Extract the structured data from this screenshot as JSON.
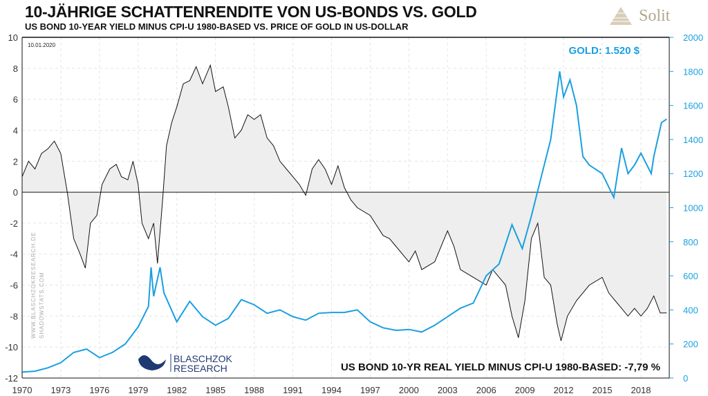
{
  "header": {
    "title": "10-JÄHRIGE SCHATTENRENDITE VON US-BONDS VS. GOLD",
    "subtitle": "US BOND 10-YEAR YIELD MINUS CPI-U 1980-BASED VS. PRICE OF GOLD IN US-DOLLAR",
    "brand": "Solit"
  },
  "colors": {
    "gold": "#1a9fe0",
    "yield": "#111111",
    "fill": "#eeeeee"
  },
  "chart_data": {
    "type": "line",
    "title": "10-JÄHRIGE SCHATTENRENDITE VON US-BONDS VS. GOLD",
    "date": "10.01.2020",
    "watermark": [
      "WWW.BLASCHZOKRESEARCH.DE",
      "SHADOWSTATS.COM"
    ],
    "publisher": [
      "BLASCHZOK",
      "RESEARCH"
    ],
    "gold_label": "GOLD: 1.520 $",
    "yield_label": "US BOND 10-YR REAL YIELD MINUS CPI-U 1980-BASED: -7,79 %",
    "xlim": [
      1970,
      2020.2
    ],
    "x_ticks": [
      "1970",
      "1973",
      "1976",
      "1979",
      "1982",
      "1985",
      "1988",
      "1991",
      "1994",
      "1997",
      "2000",
      "2003",
      "2006",
      "2009",
      "2012",
      "2015",
      "2018"
    ],
    "ylim_left": [
      -12,
      10
    ],
    "y_ticks_left": [
      "10",
      "8",
      "6",
      "4",
      "2",
      "0",
      "-2",
      "-4",
      "-6",
      "-8",
      "-10",
      "-12"
    ],
    "ylim_right": [
      0,
      2000
    ],
    "y_ticks_right": [
      "2000",
      "1800",
      "1600",
      "1400",
      "1200",
      "1000",
      "800",
      "600",
      "400",
      "200",
      "0"
    ],
    "grid": true,
    "series": [
      {
        "name": "US Bond 10-yr real yield minus CPI-U 1980-based (%)",
        "axis": "left",
        "x": [
          1970,
          1970.5,
          1971,
          1971.5,
          1972,
          1972.5,
          1973,
          1973.5,
          1974,
          1974.5,
          1974.9,
          1975.3,
          1975.8,
          1976.2,
          1976.8,
          1977.3,
          1977.7,
          1978.2,
          1978.6,
          1979,
          1979.3,
          1979.8,
          1980.2,
          1980.5,
          1980.9,
          1981.2,
          1981.6,
          1982,
          1982.5,
          1983,
          1983.5,
          1984,
          1984.6,
          1985,
          1985.6,
          1986,
          1986.5,
          1987,
          1987.5,
          1988,
          1988.5,
          1989,
          1989.5,
          1990,
          1990.5,
          1991,
          1991.5,
          1992,
          1992.5,
          1993,
          1993.5,
          1994,
          1994.5,
          1995,
          1995.5,
          1996,
          1997,
          1998,
          1998.5,
          1999,
          2000,
          2000.5,
          2001,
          2002,
          2003,
          2003.5,
          2004,
          2005,
          2006,
          2006.5,
          2007,
          2007.5,
          2008,
          2008.5,
          2009,
          2009.5,
          2010,
          2010.5,
          2011,
          2011.5,
          2011.8,
          2012.3,
          2013,
          2014,
          2015,
          2015.5,
          2016,
          2016.5,
          2017,
          2017.5,
          2018,
          2018.5,
          2019,
          2019.5,
          2020
        ],
        "values": [
          1,
          2,
          1.5,
          2.5,
          2.8,
          3.3,
          2.5,
          0,
          -3,
          -4,
          -4.9,
          -2,
          -1.5,
          0.5,
          1.5,
          1.8,
          1,
          0.8,
          2,
          0.5,
          -2,
          -3,
          -2,
          -4.6,
          -0.5,
          3,
          4.5,
          5.5,
          7,
          7.2,
          8.1,
          7,
          8.2,
          6.5,
          6.8,
          5.5,
          3.5,
          4,
          5,
          4.7,
          5,
          3.5,
          3,
          2,
          1.5,
          1,
          0.5,
          -0.2,
          1.5,
          2.1,
          1.5,
          0.5,
          1.7,
          0.3,
          -0.5,
          -1,
          -1.5,
          -2.8,
          -3,
          -3.5,
          -4.5,
          -3.8,
          -5,
          -4.5,
          -2.5,
          -3.5,
          -5,
          -5.5,
          -6,
          -5,
          -5.5,
          -6,
          -8,
          -9.4,
          -7,
          -3,
          -2,
          -5.5,
          -6,
          -8.5,
          -9.6,
          -8,
          -7,
          -6,
          -5.5,
          -6.5,
          -7,
          -7.5,
          -8,
          -7.5,
          -8,
          -7.5,
          -6.7,
          -7.8,
          -7.79
        ]
      },
      {
        "name": "Gold price (USD)",
        "axis": "right",
        "x": [
          1970,
          1971,
          1972,
          1973,
          1974,
          1975,
          1976,
          1977,
          1978,
          1979,
          1979.8,
          1980,
          1980.2,
          1980.7,
          1981,
          1982,
          1983,
          1984,
          1985,
          1986,
          1987,
          1988,
          1989,
          1990,
          1991,
          1992,
          1993,
          1994,
          1995,
          1996,
          1997,
          1998,
          1999,
          2000,
          2001,
          2002,
          2003,
          2004,
          2005,
          2006,
          2007,
          2008,
          2008.8,
          2009.5,
          2010,
          2010.5,
          2011,
          2011.7,
          2012,
          2012.5,
          2013,
          2013.5,
          2014,
          2015,
          2015.9,
          2016.5,
          2017,
          2017.5,
          2018,
          2018.8,
          2019,
          2019.6,
          2020
        ],
        "values": [
          35,
          40,
          60,
          90,
          150,
          170,
          120,
          150,
          200,
          300,
          420,
          650,
          480,
          650,
          500,
          330,
          450,
          360,
          310,
          350,
          460,
          430,
          380,
          400,
          360,
          340,
          380,
          385,
          385,
          400,
          330,
          295,
          280,
          285,
          270,
          310,
          360,
          410,
          440,
          600,
          670,
          900,
          760,
          950,
          1100,
          1250,
          1400,
          1800,
          1650,
          1750,
          1600,
          1300,
          1250,
          1200,
          1060,
          1350,
          1200,
          1250,
          1320,
          1200,
          1300,
          1500,
          1520
        ]
      }
    ]
  }
}
